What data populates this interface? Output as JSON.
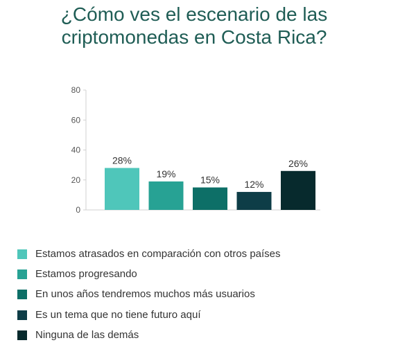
{
  "title": {
    "line1": "¿Cómo ves el escenario de las",
    "line2": "criptomonedas en Costa Rica?"
  },
  "colors": {
    "title": "#1f5d55",
    "axis_text": "#555555",
    "label_text": "#333333",
    "series": [
      "#4fc6ba",
      "#27a294",
      "#0d6f67",
      "#0e3d47",
      "#072a2d"
    ]
  },
  "chart_data": {
    "type": "bar",
    "title": "¿Cómo ves el escenario de las criptomonedas en Costa Rica?",
    "categories": [
      "Estamos atrasados en comparación con otros países",
      "Estamos progresando",
      "En unos años tendremos muchos más usuarios",
      "Es un tema que no tiene futuro aquí",
      "Ninguna de las demás"
    ],
    "values": [
      28,
      19,
      15,
      12,
      26
    ],
    "value_labels": [
      "28%",
      "19%",
      "15%",
      "12%",
      "26%"
    ],
    "ylim": [
      0,
      80
    ],
    "yticks": [
      0,
      20,
      40,
      60,
      80
    ],
    "ytick_labels": [
      "0",
      "20",
      "40",
      "60",
      "80"
    ],
    "xlabel": "",
    "ylabel": "",
    "grid": false,
    "legend_position": "bottom"
  }
}
